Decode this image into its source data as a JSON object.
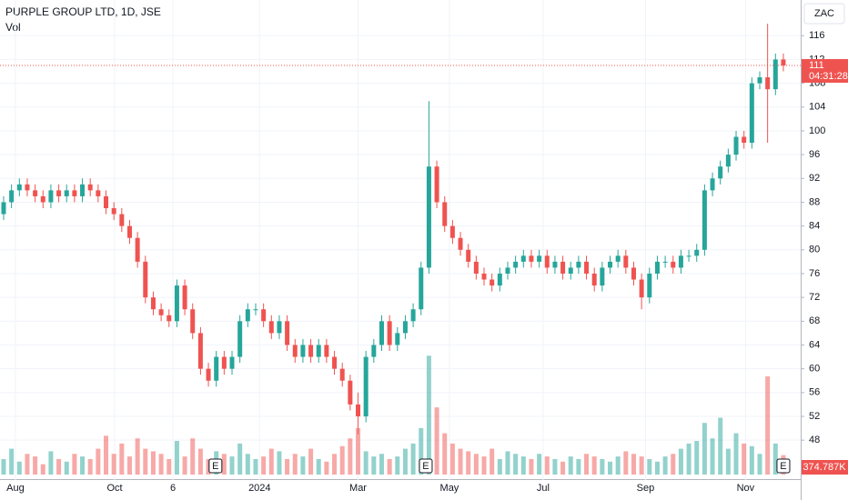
{
  "chart_data": {
    "type": "candlestick",
    "title": "PURPLE GROUP LTD, 1D, JSE",
    "volume_title": "Vol",
    "currency": "ZAC",
    "countdown": "04:31:28",
    "up_color": "#26a69a",
    "down_color": "#ef5350",
    "grid": true,
    "ylim": [
      41.3,
      122
    ],
    "yticks": [
      48,
      52,
      56,
      60,
      64,
      68,
      72,
      76,
      80,
      84,
      88,
      92,
      96,
      100,
      104,
      108,
      112,
      116
    ],
    "xlim": [
      -0.46,
      101.2
    ],
    "xticks": [
      {
        "value": 1.5,
        "label": "Aug"
      },
      {
        "value": 14.1,
        "label": "Oct"
      },
      {
        "value": 21.5,
        "label": "6"
      },
      {
        "value": 32.5,
        "label": "2024"
      },
      {
        "value": 45,
        "label": "Mar"
      },
      {
        "value": 56.6,
        "label": "May"
      },
      {
        "value": 68.5,
        "label": "Jul"
      },
      {
        "value": 81.5,
        "label": "Sep"
      },
      {
        "value": 94.2,
        "label": "Nov"
      }
    ],
    "earnings_markers": [
      {
        "x": 26.9,
        "label": "E"
      },
      {
        "x": 53.6,
        "label": "E"
      },
      {
        "x": 99,
        "label": "E"
      }
    ],
    "open": [
      86,
      88,
      90,
      91,
      90,
      89,
      88,
      90,
      89,
      90,
      89,
      91,
      90,
      89,
      87,
      86,
      84,
      82,
      78,
      72,
      70,
      69,
      68,
      74,
      70,
      66,
      60,
      58,
      62,
      60,
      62,
      68,
      70,
      70,
      68,
      66,
      68,
      64,
      62,
      64,
      62,
      64,
      62,
      60,
      58,
      54,
      52,
      62,
      64,
      68,
      64,
      66,
      68,
      70,
      77,
      94,
      88,
      84,
      82,
      80,
      78,
      76,
      75,
      74,
      76,
      77,
      78,
      79,
      78,
      79,
      77,
      78,
      76,
      77,
      78,
      76,
      74,
      77,
      78,
      79,
      77,
      75,
      72,
      76,
      78,
      78,
      77,
      79,
      79,
      80,
      90,
      92,
      94,
      96,
      99,
      98,
      108,
      109,
      107,
      112
    ],
    "high": [
      89,
      91,
      92,
      92,
      91,
      90,
      91,
      91,
      91,
      91,
      92,
      92,
      91,
      90,
      88,
      87,
      85,
      83,
      79,
      73,
      71,
      70,
      75,
      75,
      71,
      67,
      61,
      63,
      63,
      63,
      69,
      71,
      71,
      71,
      69,
      69,
      69,
      65,
      65,
      65,
      65,
      65,
      63,
      61,
      59,
      56,
      63,
      65,
      69,
      69,
      67,
      69,
      71,
      78,
      105,
      95,
      89,
      85,
      83,
      81,
      79,
      77,
      76,
      77,
      78,
      79,
      80,
      80,
      80,
      80,
      79,
      79,
      78,
      79,
      79,
      77,
      78,
      79,
      80,
      80,
      78,
      76,
      77,
      79,
      79,
      79,
      80,
      80,
      81,
      91,
      93,
      95,
      97,
      100,
      100,
      109,
      110,
      118,
      113,
      113
    ],
    "low": [
      85,
      87,
      89,
      89,
      88,
      87,
      87,
      88,
      88,
      88,
      88,
      89,
      88,
      86,
      85,
      83,
      81,
      77,
      71,
      69,
      68,
      67,
      67,
      69,
      65,
      59,
      57,
      57,
      59,
      59,
      61,
      67,
      69,
      67,
      65,
      65,
      63,
      61,
      61,
      61,
      61,
      61,
      59,
      57,
      53,
      49,
      51,
      61,
      63,
      63,
      63,
      65,
      67,
      69,
      76,
      87,
      83,
      81,
      79,
      77,
      75,
      74,
      73,
      73,
      75,
      76,
      77,
      77,
      77,
      76,
      76,
      75,
      75,
      76,
      75,
      73,
      73,
      76,
      77,
      76,
      74,
      70,
      71,
      75,
      77,
      76,
      76,
      78,
      78,
      79,
      89,
      91,
      93,
      95,
      97,
      97,
      107,
      98,
      106,
      110
    ],
    "close": [
      88,
      90,
      91,
      90,
      89,
      88,
      90,
      89,
      90,
      89,
      91,
      90,
      89,
      87,
      86,
      84,
      82,
      78,
      72,
      70,
      69,
      68,
      74,
      70,
      66,
      60,
      58,
      62,
      60,
      62,
      68,
      70,
      70,
      68,
      66,
      68,
      64,
      62,
      64,
      62,
      64,
      62,
      60,
      58,
      54,
      52,
      62,
      64,
      68,
      64,
      66,
      68,
      70,
      77,
      94,
      88,
      84,
      82,
      80,
      78,
      76,
      75,
      74,
      76,
      77,
      78,
      79,
      78,
      79,
      77,
      78,
      76,
      77,
      78,
      76,
      74,
      77,
      78,
      79,
      77,
      75,
      72,
      76,
      78,
      78,
      77,
      79,
      79,
      80,
      90,
      92,
      94,
      96,
      99,
      98,
      108,
      109,
      107,
      112,
      111
    ],
    "volume": {
      "ylim": [
        0,
        8800000
      ],
      "last_label": "374.787K",
      "values": [
        300000,
        500000,
        250000,
        400000,
        350000,
        200000,
        450000,
        300000,
        250000,
        400000,
        350000,
        300000,
        500000,
        750000,
        400000,
        600000,
        350000,
        700000,
        500000,
        450000,
        400000,
        300000,
        650000,
        350000,
        700000,
        500000,
        300000,
        450000,
        400000,
        350000,
        600000,
        400000,
        300000,
        350000,
        500000,
        450000,
        300000,
        400000,
        350000,
        500000,
        300000,
        250000,
        400000,
        550000,
        700000,
        900000,
        450000,
        350000,
        400000,
        300000,
        350000,
        500000,
        600000,
        900000,
        2300000,
        1300000,
        800000,
        600000,
        500000,
        450000,
        400000,
        350000,
        500000,
        300000,
        450000,
        400000,
        350000,
        300000,
        400000,
        350000,
        300000,
        250000,
        350000,
        300000,
        400000,
        350000,
        300000,
        250000,
        350000,
        450000,
        400000,
        350000,
        300000,
        250000,
        350000,
        400000,
        500000,
        600000,
        650000,
        1000000,
        700000,
        1100000,
        500000,
        800000,
        600000,
        550000,
        400000,
        1900000,
        600000,
        374787
      ]
    }
  }
}
